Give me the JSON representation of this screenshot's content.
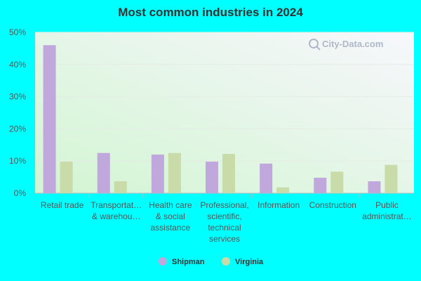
{
  "chart_data": {
    "type": "bar",
    "title": "Most common industries in 2024",
    "categories": [
      [
        "Retail trade"
      ],
      [
        "Transportat…",
        "& warehou…"
      ],
      [
        "Health care",
        "& social",
        "assistance"
      ],
      [
        "Professional,",
        "scientific,",
        "technical",
        "services"
      ],
      [
        "Information"
      ],
      [
        "Construction"
      ],
      [
        "Public",
        "administrat…"
      ]
    ],
    "series": [
      {
        "name": "Shipman",
        "color": "#c0a8dc",
        "values": [
          46.0,
          12.5,
          12.0,
          9.8,
          9.2,
          4.8,
          3.7
        ]
      },
      {
        "name": "Virginia",
        "color": "#c8dba8",
        "values": [
          9.8,
          3.7,
          12.5,
          12.2,
          1.8,
          6.7,
          8.8
        ]
      }
    ],
    "ylim": [
      0,
      50
    ],
    "yticks": [
      0,
      10,
      20,
      30,
      40,
      50
    ],
    "ytick_labels": [
      "0%",
      "10%",
      "20%",
      "30%",
      "40%",
      "50%"
    ],
    "grid": true,
    "legend_position": "bottom-center"
  },
  "watermark": {
    "text": "City-Data.com"
  },
  "colors": {
    "background": "#00ffff",
    "plot_top": "#f6f6fa",
    "plot_bottom": "#d6f5d6"
  }
}
